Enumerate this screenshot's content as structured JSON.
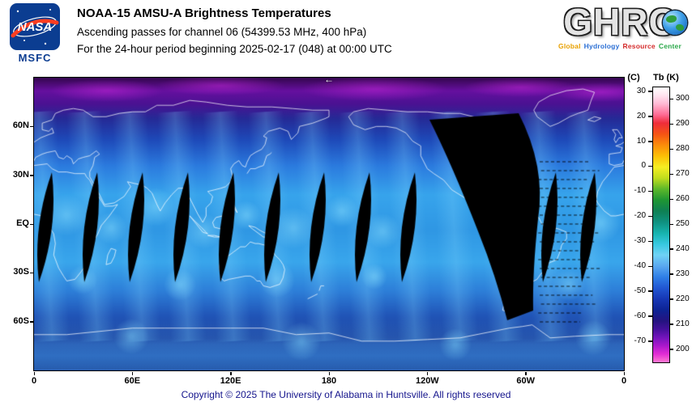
{
  "header": {
    "nasa_logo_text": "NASA",
    "msfc_label": "MSFC",
    "title": "NOAA-15 AMSU-A Brightness Temperatures",
    "subtitle": "Ascending passes for channel 06 (54399.53 MHz, 400 hPa)",
    "period_line": "For the 24-hour period beginning 2025-02-17 (048) at 00:00 UTC",
    "ghrc": {
      "logo_text": "GHRC",
      "tagline_words": [
        {
          "text": "Global",
          "color": "#e8a000"
        },
        {
          "text": "Hydrology",
          "color": "#2b6fd4"
        },
        {
          "text": "Resource",
          "color": "#d42b2b"
        },
        {
          "text": "Center",
          "color": "#2ba84a"
        }
      ]
    }
  },
  "map": {
    "arrow_icon": "←",
    "lat_ticks": [
      {
        "label": "60N",
        "lat": 60
      },
      {
        "label": "30N",
        "lat": 30
      },
      {
        "label": "EQ",
        "lat": 0
      },
      {
        "label": "30S",
        "lat": -30
      },
      {
        "label": "60S",
        "lat": -60
      }
    ],
    "lon_ticks": [
      {
        "label": "0",
        "lon": 0
      },
      {
        "label": "60E",
        "lon": 60
      },
      {
        "label": "120E",
        "lon": 120
      },
      {
        "label": "180",
        "lon": 180
      },
      {
        "label": "120W",
        "lon": 240
      },
      {
        "label": "60W",
        "lon": 300
      },
      {
        "label": "0",
        "lon": 360
      }
    ]
  },
  "colorbar": {
    "unit_celsius": "(C)",
    "unit_kelvin": "Tb  (K)",
    "kelvin_ticks": [
      300,
      290,
      280,
      270,
      260,
      250,
      240,
      230,
      220,
      210,
      200
    ],
    "celsius_ticks": [
      30,
      20,
      10,
      0,
      -10,
      -20,
      -30,
      -40,
      -50,
      -60,
      -70
    ],
    "scale_top_k": 305,
    "scale_bottom_k": 195,
    "gradient_stops": [
      {
        "pct": 0,
        "color": "#ffffff"
      },
      {
        "pct": 3,
        "color": "#ffe2ef"
      },
      {
        "pct": 6,
        "color": "#ffb9d4"
      },
      {
        "pct": 10,
        "color": "#ff6a93"
      },
      {
        "pct": 13,
        "color": "#ef2d3a"
      },
      {
        "pct": 17,
        "color": "#f55414"
      },
      {
        "pct": 21,
        "color": "#fb8c0a"
      },
      {
        "pct": 25,
        "color": "#fcbf05"
      },
      {
        "pct": 29,
        "color": "#f5ee22"
      },
      {
        "pct": 33,
        "color": "#c0dc1e"
      },
      {
        "pct": 37,
        "color": "#5cb82a"
      },
      {
        "pct": 41,
        "color": "#1f9633"
      },
      {
        "pct": 45,
        "color": "#0e8054"
      },
      {
        "pct": 49,
        "color": "#0f9180"
      },
      {
        "pct": 53,
        "color": "#17b3ae"
      },
      {
        "pct": 57,
        "color": "#37c8e0"
      },
      {
        "pct": 61,
        "color": "#6fd2f5"
      },
      {
        "pct": 65,
        "color": "#5aa8f0"
      },
      {
        "pct": 69,
        "color": "#2f7fe6"
      },
      {
        "pct": 73,
        "color": "#2156d2"
      },
      {
        "pct": 77,
        "color": "#1636b4"
      },
      {
        "pct": 81,
        "color": "#0d2394"
      },
      {
        "pct": 85,
        "color": "#251380"
      },
      {
        "pct": 88,
        "color": "#44109c"
      },
      {
        "pct": 91,
        "color": "#7314bc"
      },
      {
        "pct": 94,
        "color": "#ab18cc"
      },
      {
        "pct": 97,
        "color": "#e22cd4"
      },
      {
        "pct": 100,
        "color": "#ff7ad2"
      }
    ]
  },
  "footer": {
    "copyright": "Copyright © 2025 The University of Alabama in Huntsville.  All rights reserved"
  }
}
